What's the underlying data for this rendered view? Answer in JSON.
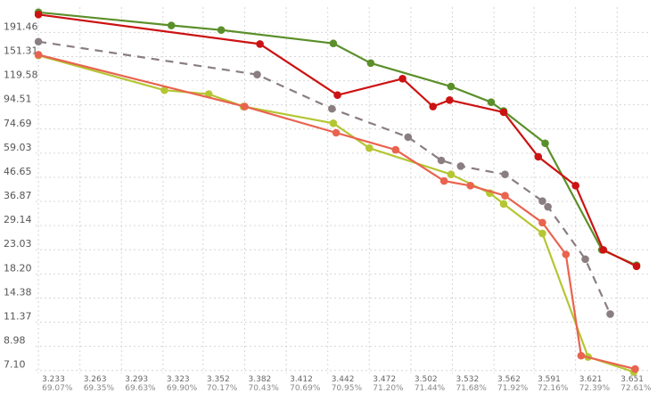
{
  "chart_data": {
    "type": "line",
    "title": "",
    "xlabel": "",
    "ylabel": "",
    "y_scale": "log",
    "grid": true,
    "legend": "none",
    "x_ticks": [
      {
        "value": 3.233,
        "label": "3.233",
        "sub": "69.07%"
      },
      {
        "value": 3.263,
        "label": "3.263",
        "sub": "69.35%"
      },
      {
        "value": 3.293,
        "label": "3.293",
        "sub": "69.63%"
      },
      {
        "value": 3.323,
        "label": "3.323",
        "sub": "69.90%"
      },
      {
        "value": 3.352,
        "label": "3.352",
        "sub": "70.17%"
      },
      {
        "value": 3.382,
        "label": "3.382",
        "sub": "70.43%"
      },
      {
        "value": 3.412,
        "label": "3.412",
        "sub": "70.69%"
      },
      {
        "value": 3.442,
        "label": "3.442",
        "sub": "70.95%"
      },
      {
        "value": 3.472,
        "label": "3.472",
        "sub": "71.20%"
      },
      {
        "value": 3.502,
        "label": "3.502",
        "sub": "71.44%"
      },
      {
        "value": 3.532,
        "label": "3.532",
        "sub": "71.68%"
      },
      {
        "value": 3.562,
        "label": "3.562",
        "sub": "71.92%"
      },
      {
        "value": 3.591,
        "label": "3.591",
        "sub": "72.16%"
      },
      {
        "value": 3.621,
        "label": "3.621",
        "sub": "72.39%"
      },
      {
        "value": 3.651,
        "label": "3.651",
        "sub": "72.61%"
      }
    ],
    "y_ticks": [
      {
        "value": 7.1,
        "label": "7.10"
      },
      {
        "value": 8.98,
        "label": "8.98"
      },
      {
        "value": 11.37,
        "label": "11.37"
      },
      {
        "value": 14.38,
        "label": "14.38"
      },
      {
        "value": 18.2,
        "label": "18.20"
      },
      {
        "value": 23.03,
        "label": "23.03"
      },
      {
        "value": 29.14,
        "label": "29.14"
      },
      {
        "value": 36.87,
        "label": "36.87"
      },
      {
        "value": 46.65,
        "label": "46.65"
      },
      {
        "value": 59.03,
        "label": "59.03"
      },
      {
        "value": 74.69,
        "label": "74.69"
      },
      {
        "value": 94.51,
        "label": "94.51"
      },
      {
        "value": 119.58,
        "label": "119.58"
      },
      {
        "value": 151.31,
        "label": "151.31"
      },
      {
        "value": 191.46,
        "label": "191.46"
      }
    ],
    "xlim": [
      3.231,
      3.674
    ],
    "ylim": [
      6.9,
      245
    ],
    "series": [
      {
        "color": "#5b8f2a",
        "dash": false,
        "points": [
          [
            3.233,
            233
          ],
          [
            3.329,
            205
          ],
          [
            3.365,
            196
          ],
          [
            3.446,
            172
          ],
          [
            3.473,
            142
          ],
          [
            3.531,
            113
          ],
          [
            3.56,
            97
          ],
          [
            3.569,
            89
          ],
          [
            3.599,
            65
          ],
          [
            3.64,
            23
          ],
          [
            3.665,
            19.8
          ]
        ]
      },
      {
        "color": "#cc1212",
        "dash": false,
        "points": [
          [
            3.233,
            228
          ],
          [
            3.393,
            171
          ],
          [
            3.449,
            104
          ],
          [
            3.496,
            122
          ],
          [
            3.518,
            93
          ],
          [
            3.53,
            99
          ],
          [
            3.569,
            88
          ],
          [
            3.594,
            57
          ],
          [
            3.621,
            43
          ],
          [
            3.641,
            23
          ],
          [
            3.665,
            19.6
          ]
        ]
      },
      {
        "color": "#8a7e80",
        "dash": true,
        "points": [
          [
            3.233,
            175
          ],
          [
            3.391,
            127
          ],
          [
            3.445,
            91
          ],
          [
            3.5,
            69
          ],
          [
            3.524,
            55
          ],
          [
            3.538,
            52
          ],
          [
            3.57,
            48
          ],
          [
            3.597,
            37
          ],
          [
            3.601,
            35
          ],
          [
            3.628,
            21
          ],
          [
            3.646,
            12.3
          ]
        ]
      },
      {
        "color": "#b5c633",
        "dash": false,
        "points": [
          [
            3.233,
            153
          ],
          [
            3.324,
            109
          ],
          [
            3.356,
            105
          ],
          [
            3.381,
            93
          ],
          [
            3.446,
            79
          ],
          [
            3.472,
            62
          ],
          [
            3.531,
            48
          ],
          [
            3.559,
            40
          ],
          [
            3.569,
            36
          ],
          [
            3.597,
            27
          ],
          [
            3.63,
            8.1
          ],
          [
            3.663,
            7.0
          ]
        ]
      },
      {
        "color": "#e9634f",
        "dash": false,
        "points": [
          [
            3.233,
            154
          ],
          [
            3.382,
            93
          ],
          [
            3.448,
            72
          ],
          [
            3.491,
            61
          ],
          [
            3.526,
            45
          ],
          [
            3.545,
            43
          ],
          [
            3.57,
            39
          ],
          [
            3.597,
            30
          ],
          [
            3.614,
            22
          ],
          [
            3.625,
            8.2
          ],
          [
            3.664,
            7.2
          ]
        ]
      }
    ]
  }
}
